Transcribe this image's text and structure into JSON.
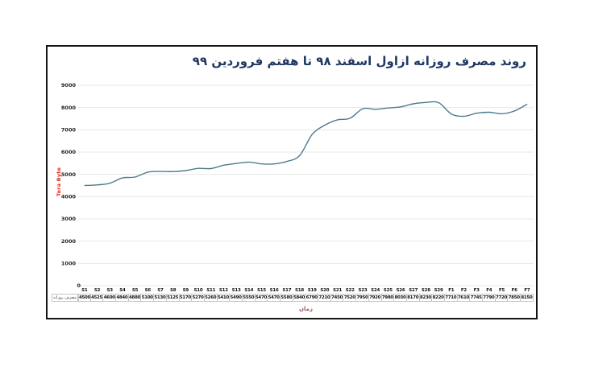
{
  "chart_data": {
    "type": "line",
    "title": "روند مصرف روزانه ازاول اسفند ۹۸ تا هفتم فروردین ۹۹",
    "x": [
      "S1",
      "S2",
      "S3",
      "S4",
      "S5",
      "S6",
      "S7",
      "S8",
      "S9",
      "S10",
      "S11",
      "S12",
      "S13",
      "S14",
      "S15",
      "S16",
      "S17",
      "S18",
      "S19",
      "S20",
      "S21",
      "S22",
      "S23",
      "S24",
      "S25",
      "S26",
      "S27",
      "S28",
      "S29",
      "F1",
      "F2",
      "F3",
      "F4",
      "F5",
      "F6",
      "F7"
    ],
    "series": [
      {
        "name": "مصرف روزانه",
        "values": [
          4500,
          4525,
          4600,
          4840,
          4880,
          5100,
          5130,
          5125,
          5170,
          5270,
          5260,
          5410,
          5490,
          5550,
          5470,
          5470,
          5580,
          5840,
          6790,
          7210,
          7450,
          7520,
          7950,
          7920,
          7980,
          8030,
          8170,
          8230,
          8220,
          7710,
          7610,
          7745,
          7790,
          7720,
          7850,
          8150
        ]
      }
    ],
    "xlabel": "زمان",
    "ylabel": "Tera Byte",
    "ylim": [
      0,
      9000
    ],
    "ytick_step": 1000,
    "grid": true,
    "legend_position": "none",
    "colors": {
      "line": "#4e7b8e",
      "title": "#1f3864",
      "ylabel_text": "#e8291c",
      "xlabel_text": "#a05252",
      "gridline": "#e7e7e7",
      "tick_text": "#222222",
      "frame_border": "#141414",
      "table_border": "#c4c4c4"
    }
  }
}
